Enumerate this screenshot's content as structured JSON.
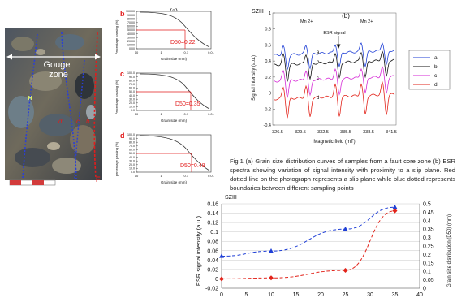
{
  "photo": {
    "gouge_label": [
      "Gouge",
      "zone"
    ],
    "point_labels": [
      "d",
      "c",
      "b"
    ],
    "end_label": "F",
    "colors": {
      "slip_line": "#e21c1c",
      "boundary_line": "#2a3fd6"
    }
  },
  "grain_charts": [
    {
      "panel": "b",
      "heading": "(a)",
      "ylabel": "Percentage passing (%)",
      "xlabel": "Grain size (mm)",
      "d50_label": "D50=0.22",
      "y_ticks": [
        "100.00",
        "90.00",
        "80.00",
        "70.00",
        "60.00",
        "50.00",
        "40.00",
        "30.00",
        "20.00",
        "10.00",
        "0.00"
      ],
      "x_ticks": [
        "10",
        "1",
        "0.1",
        "0.01"
      ]
    },
    {
      "panel": "c",
      "ylabel": "Percentage passing (%)",
      "xlabel": "Grain size (mm)",
      "d50_label": "D50=0.35",
      "y_ticks": [
        "100.0",
        "90.0",
        "80.0",
        "70.0",
        "60.0",
        "50.0",
        "40.0",
        "30.0",
        "20.0",
        "10.0",
        "0.0"
      ],
      "x_ticks": [
        "10",
        "1",
        "0.1",
        "0.01"
      ]
    },
    {
      "panel": "d",
      "ylabel": "percentage passing (%)",
      "xlabel": "Grain size (mm)",
      "d50_label": "D50=0.48",
      "y_ticks": [
        "100.0",
        "90.0",
        "80.0",
        "70.0",
        "60.0",
        "50.0",
        "40.0",
        "30.0",
        "20.0",
        "10.0",
        "0.0"
      ],
      "x_ticks": [
        "10",
        "1",
        "0.1",
        "0.01"
      ]
    }
  ],
  "esr_chart": {
    "label_tl": "SZIII",
    "heading": "(b)",
    "ylabel": "Signal intensity (a.u.)",
    "xlabel": "Magnetic field (mT)",
    "annotations": {
      "mn_left": "Mn 2+",
      "mn_right": "Mn 2+",
      "esr_signal": "ESR signal"
    },
    "curve_labels": [
      "a",
      "b",
      "c",
      "d"
    ],
    "legend": [
      {
        "name": "a",
        "color": "#1f3fd6"
      },
      {
        "name": "b",
        "color": "#111111"
      },
      {
        "name": "c",
        "color": "#d62ad6"
      },
      {
        "name": "d",
        "color": "#e2231a"
      }
    ],
    "y_ticks": [
      "1",
      "0.8",
      "0.6",
      "0.4",
      "0.2",
      "0",
      "-0.2",
      "-0.4"
    ],
    "x_ticks": [
      "326.5",
      "329.5",
      "332.5",
      "335.5",
      "338.5",
      "341.5"
    ]
  },
  "caption": "Fig.1 (a) Grain size distribution curves of samples from a fault core zone (b) ESR spectra showing variation of signal intensity with proximity to a slip plane. Red dotted line on the photograph represents a slip plane while blue dotted represents boundaries between different sampling points",
  "chart_data": {
    "type": "line",
    "title": "SZIII",
    "ylabel": "ESR signal intensity (a.u.)",
    "y2label": "Grain size distribution (D50) (mm)",
    "x": [
      0,
      10,
      25,
      35
    ],
    "x_ticks": [
      0,
      5,
      10,
      15,
      20,
      25,
      30,
      35,
      40
    ],
    "ylim": [
      -0.02,
      0.16
    ],
    "y_ticks": [
      "0.16",
      "0.14",
      "0.12",
      "0.1",
      "0.08",
      "0.06",
      "0.04",
      "0.02",
      "0",
      "-0.02"
    ],
    "y2lim": [
      0,
      0.5
    ],
    "y2_ticks": [
      "0.5",
      "0.45",
      "0.4",
      "0.35",
      "0.3",
      "0.25",
      "0.2",
      "0.15",
      "0.1",
      "0.05",
      "0"
    ],
    "grid": true,
    "series": [
      {
        "axis": "y2",
        "color": "#1f3fd6",
        "marker": "triangle",
        "values": [
          0.19,
          0.22,
          0.35,
          0.48
        ]
      },
      {
        "axis": "y",
        "color": "#e2231a",
        "marker": "diamond",
        "values": [
          0,
          0.002,
          0.018,
          0.145
        ]
      }
    ]
  }
}
